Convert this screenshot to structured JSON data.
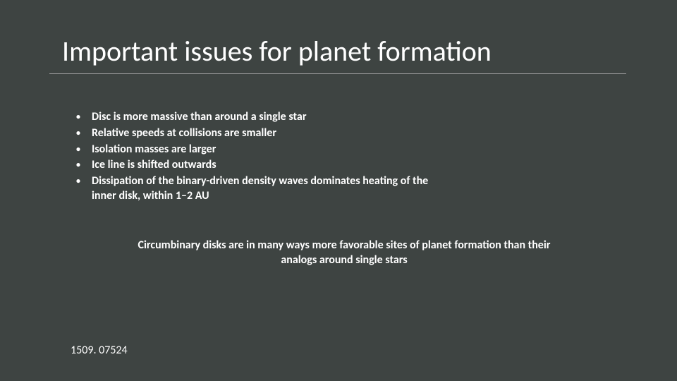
{
  "slide": {
    "title": "Important issues for planet formation",
    "background_color": "#3e4442",
    "text_color": "#ffffff",
    "underline_color": "#9c9c9c",
    "title_fontsize": 40,
    "body_fontsize": 16,
    "body_fontweight": 600,
    "bullets": [
      "Disc is more massive than around a single star",
      "Relative speeds at collisions are smaller",
      "Isolation masses are larger",
      "Ice line is shifted outwards",
      "Dissipation of the binary-driven density waves dominates heating of the inner disk, within 1–2 AU"
    ],
    "summary": "Circumbinary disks are in many ways more favorable sites of planet formation than their analogs around single stars",
    "reference": "1509. 07524"
  }
}
